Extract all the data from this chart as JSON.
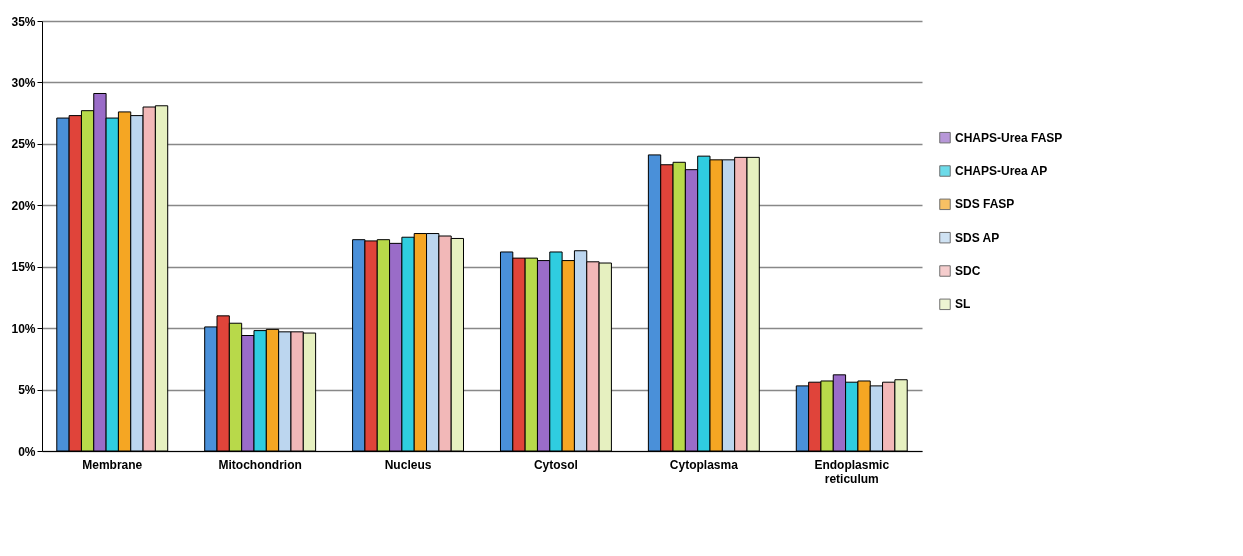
{
  "chart_data": {
    "type": "bar",
    "categories": [
      "Membrane",
      "Mitochondrion",
      "Nucleus",
      "Cytosol",
      "Cytoplasma",
      "Endoplasmic reticulum"
    ],
    "series": [
      {
        "color": "#4a90d9",
        "values": [
          27.1,
          10.1,
          17.2,
          16.2,
          24.1,
          5.3
        ]
      },
      {
        "color": "#e0443a",
        "values": [
          27.3,
          11.0,
          17.1,
          15.7,
          23.3,
          5.6
        ]
      },
      {
        "color": "#b8d94a",
        "values": [
          27.7,
          10.4,
          17.2,
          15.7,
          23.5,
          5.7
        ]
      },
      {
        "name": "CHAPS-Urea FASP",
        "color": "#9a6cc8",
        "values": [
          29.1,
          9.4,
          16.9,
          15.5,
          22.9,
          6.2
        ]
      },
      {
        "name": "CHAPS-Urea AP",
        "color": "#2fcde0",
        "values": [
          27.1,
          9.8,
          17.4,
          16.2,
          24.0,
          5.6
        ]
      },
      {
        "name": "SDS FASP",
        "color": "#f5a623",
        "values": [
          27.6,
          9.9,
          17.7,
          15.5,
          23.7,
          5.7
        ]
      },
      {
        "name": "SDS AP",
        "color": "#bcd6ef",
        "values": [
          27.3,
          9.7,
          17.7,
          16.3,
          23.7,
          5.3
        ]
      },
      {
        "name": "SDC",
        "color": "#f2b8b8",
        "values": [
          28.0,
          9.7,
          17.5,
          15.4,
          23.9,
          5.6
        ]
      },
      {
        "name": "SL",
        "color": "#e6f0c0",
        "values": [
          28.1,
          9.6,
          17.3,
          15.3,
          23.9,
          5.8
        ]
      }
    ],
    "ylim": [
      0,
      35
    ],
    "yticks": [
      {
        "value": 0,
        "label": "0%"
      },
      {
        "value": 5,
        "label": "5%"
      },
      {
        "value": 10,
        "label": "10%"
      },
      {
        "value": 15,
        "label": "15%"
      },
      {
        "value": 20,
        "label": "20%"
      },
      {
        "value": 25,
        "label": "25%"
      },
      {
        "value": 30,
        "label": "30%"
      },
      {
        "value": 35,
        "label": "35%"
      }
    ],
    "grid": "y",
    "legend": "right"
  }
}
